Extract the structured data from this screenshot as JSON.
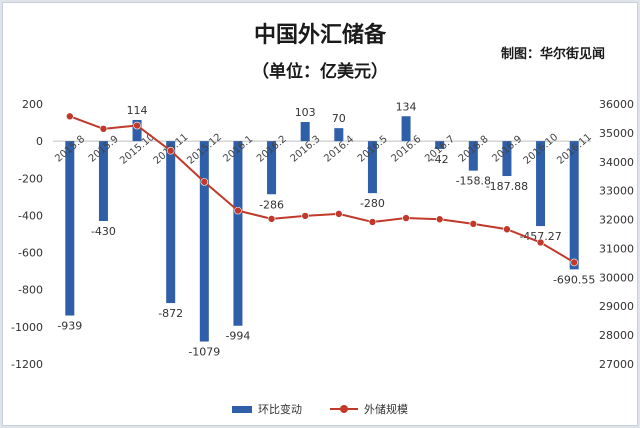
{
  "header": {
    "title": "中国外汇储备",
    "subtitle": "（单位：亿美元）",
    "credit": "制图：华尔街见闻"
  },
  "colors": {
    "bar": "#2e5fa8",
    "line": "#c0392b"
  },
  "chart_data": {
    "type": "bar+line",
    "title": "中国外汇储备",
    "subtitle": "（单位：亿美元）",
    "categories": [
      "2015.8",
      "2015.9",
      "2015.10",
      "2015.11",
      "2015.12",
      "2016.1",
      "2016.2",
      "2016.3",
      "2016.4",
      "2016.5",
      "2016.6",
      "2016.7",
      "2016.8",
      "2016.9",
      "2016.10",
      "2016.11"
    ],
    "series": [
      {
        "name": "环比变动",
        "type": "bar",
        "axis": "left",
        "values": [
          -939,
          -430,
          114,
          -872,
          -1079,
          -994,
          -286,
          103,
          70,
          -280,
          134,
          -42,
          -158.8,
          -187.88,
          -457.27,
          -690.55
        ],
        "labels": [
          "-939",
          "-430",
          "114",
          "-872",
          "-1079",
          "-994",
          "-286",
          "103",
          "70",
          "-280",
          "134",
          "-42",
          "-158.8",
          "-187.88",
          "-457.27",
          "-690.55"
        ]
      },
      {
        "name": "外储规模",
        "type": "line",
        "axis": "right",
        "values": [
          35574,
          35141,
          35255,
          34383,
          33304,
          32309,
          32023,
          32126,
          32197,
          31917,
          32052,
          32011,
          31852,
          31664,
          31207,
          30516
        ]
      }
    ],
    "left_axis": {
      "min": -1200,
      "max": 200,
      "step": 200,
      "ticks": [
        "200",
        "0",
        "-200",
        "-400",
        "-600",
        "-800",
        "-1000",
        "-1200"
      ]
    },
    "right_axis": {
      "min": 27000,
      "max": 36000,
      "step": 1000,
      "ticks": [
        "36000",
        "35000",
        "34000",
        "33000",
        "32000",
        "31000",
        "30000",
        "29000",
        "28000",
        "27000"
      ]
    },
    "legend": {
      "position": "bottom"
    }
  }
}
